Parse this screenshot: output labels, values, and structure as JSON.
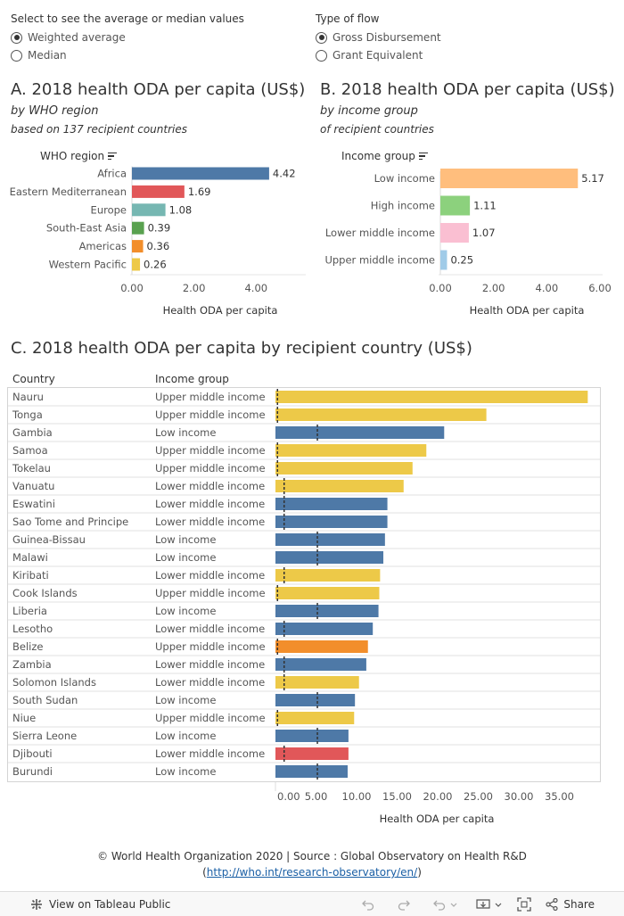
{
  "controls": {
    "stat": {
      "title": "Select to see the average or median values",
      "options": [
        "Weighted average",
        "Median"
      ],
      "selected": 0
    },
    "flow": {
      "title": "Type of flow",
      "options": [
        "Gross Disbursement",
        "Grant Equivalent"
      ],
      "selected": 0
    }
  },
  "panelA": {
    "title": "A. 2018 health ODA per capita (US$)",
    "subtitle": "by WHO region",
    "subtitle2": "based on 137 recipient countries",
    "column_header": "WHO region"
  },
  "panelB": {
    "title": "B. 2018 health ODA per capita (US$)",
    "subtitle": "by income group",
    "subtitle2": "of recipient countries",
    "column_header": "Income group"
  },
  "panelC": {
    "title": "C. 2018 health ODA per capita by recipient country (US$)",
    "col_country": "Country",
    "col_income": "Income group"
  },
  "chart_data": [
    {
      "id": "A",
      "type": "bar",
      "orientation": "horizontal",
      "categories": [
        "Africa",
        "Eastern Mediterranean",
        "Europe",
        "South-East Asia",
        "Americas",
        "Western Pacific"
      ],
      "values": [
        4.42,
        1.69,
        1.08,
        0.39,
        0.36,
        0.26
      ],
      "value_labels": [
        "4.42",
        "1.69",
        "1.08",
        "0.39",
        "0.36",
        "0.26"
      ],
      "colors": [
        "#4e79a7",
        "#e15759",
        "#76b7b2",
        "#59a14f",
        "#f28e2b",
        "#edc948"
      ],
      "xlabel": "Health ODA per capita",
      "xlim": [
        0,
        5.6
      ],
      "ticks": [
        0,
        2,
        4
      ],
      "tick_labels": [
        "0.00",
        "2.00",
        "4.00"
      ]
    },
    {
      "id": "B",
      "type": "bar",
      "orientation": "horizontal",
      "categories": [
        "Low income",
        "High income",
        "Lower middle income",
        "Upper middle income"
      ],
      "values": [
        5.17,
        1.11,
        1.07,
        0.25
      ],
      "value_labels": [
        "5.17",
        "1.11",
        "1.07",
        "0.25"
      ],
      "colors": [
        "#ffbe7d",
        "#8cd17d",
        "#fabfd2",
        "#a0cbe8"
      ],
      "xlabel": "Health ODA per capita",
      "xlim": [
        0,
        6.1
      ],
      "ticks": [
        0,
        2,
        4,
        6
      ],
      "tick_labels": [
        "0.00",
        "2.00",
        "4.00",
        "6.00"
      ]
    },
    {
      "id": "C",
      "type": "bar",
      "orientation": "horizontal",
      "rows": [
        {
          "country": "Nauru",
          "income": "Upper middle income",
          "value": 38.5,
          "color": "#edc948",
          "ref": 0.25
        },
        {
          "country": "Tonga",
          "income": "Upper middle income",
          "value": 26.0,
          "color": "#edc948",
          "ref": 0.25
        },
        {
          "country": "Gambia",
          "income": "Low income",
          "value": 20.8,
          "color": "#4e79a7",
          "ref": 5.17
        },
        {
          "country": "Samoa",
          "income": "Upper middle income",
          "value": 18.6,
          "color": "#edc948",
          "ref": 0.25
        },
        {
          "country": "Tokelau",
          "income": "Upper middle income",
          "value": 16.9,
          "color": "#edc948",
          "ref": 0.25
        },
        {
          "country": "Vanuatu",
          "income": "Lower middle income",
          "value": 15.8,
          "color": "#edc948",
          "ref": 1.07
        },
        {
          "country": "Eswatini",
          "income": "Lower middle income",
          "value": 13.8,
          "color": "#4e79a7",
          "ref": 1.07
        },
        {
          "country": "Sao Tome and Principe",
          "income": "Lower middle income",
          "value": 13.8,
          "color": "#4e79a7",
          "ref": 1.07
        },
        {
          "country": "Guinea-Bissau",
          "income": "Low income",
          "value": 13.5,
          "color": "#4e79a7",
          "ref": 5.17
        },
        {
          "country": "Malawi",
          "income": "Low income",
          "value": 13.3,
          "color": "#4e79a7",
          "ref": 5.17
        },
        {
          "country": "Kiribati",
          "income": "Lower middle income",
          "value": 12.9,
          "color": "#edc948",
          "ref": 1.07
        },
        {
          "country": "Cook Islands",
          "income": "Upper middle income",
          "value": 12.8,
          "color": "#edc948",
          "ref": 0.25
        },
        {
          "country": "Liberia",
          "income": "Low income",
          "value": 12.7,
          "color": "#4e79a7",
          "ref": 5.17
        },
        {
          "country": "Lesotho",
          "income": "Lower middle income",
          "value": 12.0,
          "color": "#4e79a7",
          "ref": 1.07
        },
        {
          "country": "Belize",
          "income": "Upper middle income",
          "value": 11.4,
          "color": "#f28e2b",
          "ref": 0.25
        },
        {
          "country": "Zambia",
          "income": "Lower middle income",
          "value": 11.2,
          "color": "#4e79a7",
          "ref": 1.07
        },
        {
          "country": "Solomon Islands",
          "income": "Lower middle income",
          "value": 10.3,
          "color": "#edc948",
          "ref": 1.07
        },
        {
          "country": "South Sudan",
          "income": "Low income",
          "value": 9.8,
          "color": "#4e79a7",
          "ref": 5.17
        },
        {
          "country": "Niue",
          "income": "Upper middle income",
          "value": 9.7,
          "color": "#edc948",
          "ref": 0.25
        },
        {
          "country": "Sierra Leone",
          "income": "Low income",
          "value": 9.0,
          "color": "#4e79a7",
          "ref": 5.17
        },
        {
          "country": "Djibouti",
          "income": "Lower middle income",
          "value": 9.0,
          "color": "#e15759",
          "ref": 1.07
        },
        {
          "country": "Burundi",
          "income": "Low income",
          "value": 8.9,
          "color": "#4e79a7",
          "ref": 5.17
        }
      ],
      "xlabel": "Health ODA per capita",
      "xlim": [
        0,
        40
      ],
      "ticks": [
        0,
        5,
        10,
        15,
        20,
        25,
        30,
        35
      ],
      "tick_labels": [
        "0.00",
        "5.00",
        "10.00",
        "15.00",
        "20.00",
        "25.00",
        "30.00",
        "35.00"
      ]
    }
  ],
  "footer": {
    "line1": "© World Health Organization 2020 | Source : Global Observatory on Health R&D",
    "link": "http://who.int/research-observatory/en/",
    "open_paren": "(",
    "close_paren": ")"
  },
  "toolbar": {
    "view_label": "View on Tableau Public",
    "share_label": "Share"
  }
}
